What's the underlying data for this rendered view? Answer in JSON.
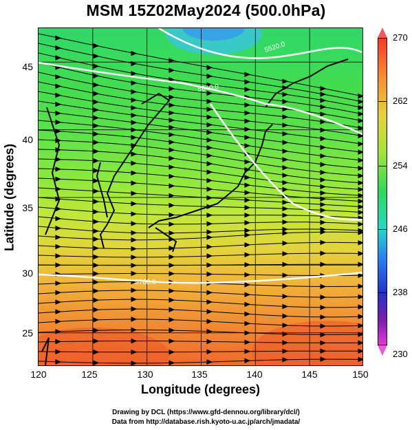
{
  "title": "MSM 15Z02May2024 (500.0hPa)",
  "axes": {
    "xlabel": "Longitude (degrees)",
    "ylabel": "Latitude  (degrees)",
    "xticks": [
      "120",
      "125",
      "130",
      "135",
      "140",
      "145",
      "150"
    ],
    "yticks": [
      "45",
      "40",
      "35",
      "30",
      "25"
    ],
    "xlim": [
      120,
      150
    ],
    "ylim": [
      22.5,
      47.5
    ]
  },
  "colorbar": {
    "ticks": [
      "270",
      "262",
      "254",
      "246",
      "238",
      "230"
    ],
    "range": [
      230,
      270
    ]
  },
  "contour_labels": [
    "5520.0",
    "5640.0",
    "5760.0"
  ],
  "credits": {
    "line1": "Drawing by DCL (https://www.gfd-dennou.org/library/dcl/)",
    "line2": "Data from http://database.rish.kyoto-u.ac.jp/arch/jmadata/"
  },
  "colors": {
    "cold": "#3aa0e8",
    "warm": "#ef6a2e",
    "contour": "#ffffff",
    "streamline": "#000000"
  }
}
